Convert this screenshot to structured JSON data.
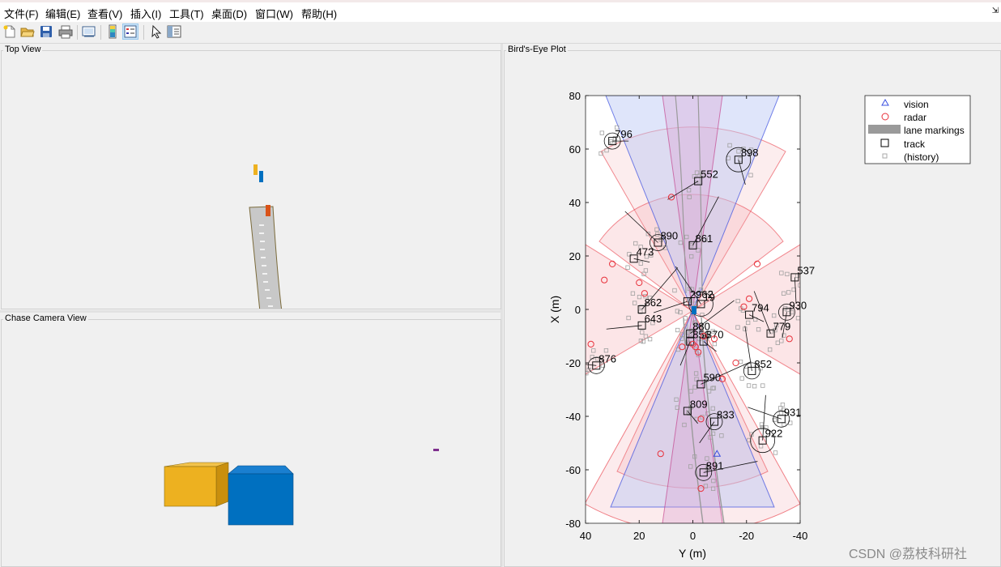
{
  "menu": [
    "文件(F)",
    "编辑(E)",
    "查看(V)",
    "插入(I)",
    "工具(T)",
    "桌面(D)",
    "窗口(W)",
    "帮助(H)"
  ],
  "toolbar": {
    "buttons": [
      "new-figure",
      "open-file",
      "save",
      "print",
      "link-plot",
      "colorbar",
      "legend",
      "select-pointer",
      "property-inspector"
    ]
  },
  "panels": {
    "top_view": "Top View",
    "chase_view": "Chase Camera View",
    "birds_eye": "Bird's-Eye Plot"
  },
  "colors": {
    "ego_blue": "#0070c0",
    "car_yellow": "#edb120",
    "car_red": "#d95319",
    "radar_red": "#e8303a",
    "vision_blue": "#3a4fe0",
    "road_gray": "#c8c8c8",
    "track_purple": "#7e2f8e"
  },
  "legend": [
    "vision",
    "radar",
    "lane markings",
    "track",
    "(history)"
  ],
  "chart_data": {
    "type": "scatter",
    "title": "",
    "xlabel": "Y (m)",
    "ylabel": "X (m)",
    "xlim": [
      40,
      -40
    ],
    "ylim": [
      -80,
      80
    ],
    "x_ticks": [
      "40",
      "20",
      "0",
      "-20",
      "-40"
    ],
    "y_ticks": [
      "80",
      "60",
      "40",
      "20",
      "0",
      "-20",
      "-40",
      "-60",
      "-80"
    ],
    "grid": false,
    "legend_position": "top-right outside",
    "tracks": [
      {
        "id": "796",
        "y": 30,
        "x": 63
      },
      {
        "id": "898",
        "y": -17,
        "x": 56
      },
      {
        "id": "552",
        "y": -2,
        "x": 48
      },
      {
        "id": "890",
        "y": 13,
        "x": 25
      },
      {
        "id": "861",
        "y": 0,
        "x": 24
      },
      {
        "id": "473",
        "y": 22,
        "x": 19
      },
      {
        "id": "537",
        "y": -38,
        "x": 12
      },
      {
        "id": "2962",
        "y": 2,
        "x": 3
      },
      {
        "id": "19",
        "y": -3,
        "x": 2
      },
      {
        "id": "862",
        "y": 19,
        "x": 0
      },
      {
        "id": "794",
        "y": -21,
        "x": -2
      },
      {
        "id": "930",
        "y": -35,
        "x": -1
      },
      {
        "id": "643",
        "y": 19,
        "x": -6
      },
      {
        "id": "779",
        "y": -29,
        "x": -9
      },
      {
        "id": "880",
        "y": 1,
        "x": -9
      },
      {
        "id": "870",
        "y": -4,
        "x": -12
      },
      {
        "id": "856",
        "y": 1,
        "x": -12
      },
      {
        "id": "876",
        "y": 36,
        "x": -21
      },
      {
        "id": "852",
        "y": -22,
        "x": -23
      },
      {
        "id": "590",
        "y": -3,
        "x": -28
      },
      {
        "id": "809",
        "y": 2,
        "x": -38
      },
      {
        "id": "833",
        "y": -8,
        "x": -42
      },
      {
        "id": "931",
        "y": -33,
        "x": -41
      },
      {
        "id": "922",
        "y": -26,
        "x": -49
      },
      {
        "id": "891",
        "y": -4,
        "x": -61
      }
    ],
    "radar": [
      {
        "y": 8,
        "x": 42
      },
      {
        "y": 30,
        "x": 17
      },
      {
        "y": 33,
        "x": 11
      },
      {
        "y": 20,
        "x": 10
      },
      {
        "y": 18,
        "x": 6
      },
      {
        "y": -24,
        "x": 17
      },
      {
        "y": -21,
        "x": 4
      },
      {
        "y": -19,
        "x": 1
      },
      {
        "y": 38,
        "x": -13
      },
      {
        "y": -16,
        "x": -20
      },
      {
        "y": -11,
        "x": -26
      },
      {
        "y": 12,
        "x": -54
      },
      {
        "y": -3,
        "x": -41
      },
      {
        "y": -3,
        "x": -67
      },
      {
        "y": -36,
        "x": -11
      },
      {
        "y": -8,
        "x": -11
      },
      {
        "y": 4,
        "x": -14
      },
      {
        "y": 0,
        "x": -13
      },
      {
        "y": -2,
        "x": -16
      },
      {
        "y": -4,
        "x": -10
      },
      {
        "y": -1,
        "x": -14
      }
    ],
    "vision": [
      {
        "y": -9,
        "x": -54
      }
    ]
  }
}
